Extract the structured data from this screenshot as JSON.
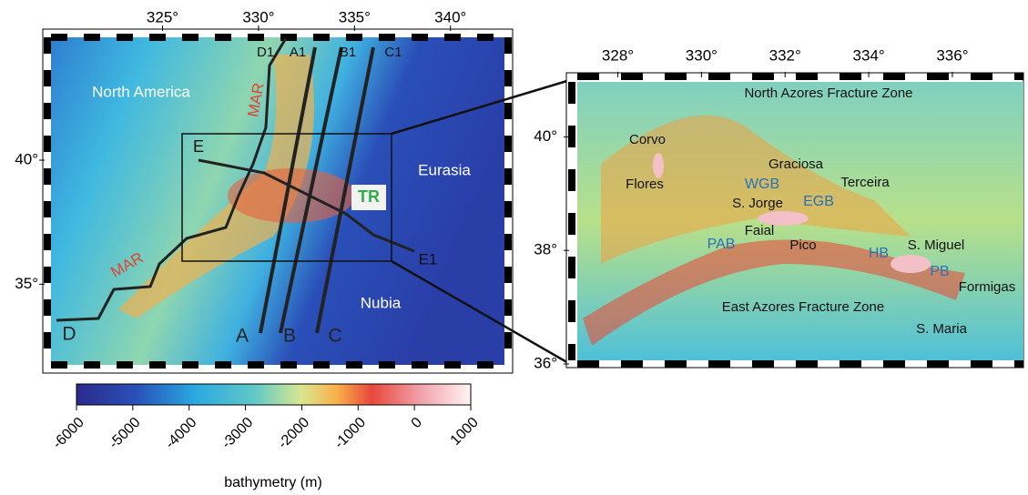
{
  "left_map": {
    "xlim": [
      319,
      343
    ],
    "ylim": [
      31.6,
      45.1
    ],
    "xticks": [
      {
        "value": 325,
        "label": "325°"
      },
      {
        "value": 330,
        "label": "330°"
      },
      {
        "value": 335,
        "label": "335°"
      },
      {
        "value": 340,
        "label": "340°"
      }
    ],
    "yticks": [
      {
        "value": 35,
        "label": "35°"
      },
      {
        "value": 40,
        "label": "40°"
      }
    ],
    "labels": [
      "D1",
      "A1",
      "B1",
      "C1",
      "North America",
      "MAR",
      "E",
      "Eurasia",
      "TR",
      "E1",
      "MAR",
      "Nubia",
      "D",
      "A",
      "B",
      "C"
    ]
  },
  "colorbar": {
    "xlim": [
      -6000,
      1000
    ],
    "xticks": [
      -6000,
      -5000,
      -4000,
      -3000,
      -2000,
      -1000,
      0,
      1000
    ],
    "label": "bathymetry (m)"
  },
  "right_map": {
    "xlim": [
      326.9,
      337.7
    ],
    "ylim": [
      36,
      41
    ],
    "xticks": [
      {
        "value": 328,
        "label": "328°"
      },
      {
        "value": 330,
        "label": "330°"
      },
      {
        "value": 332,
        "label": "332°"
      },
      {
        "value": 334,
        "label": "334°"
      },
      {
        "value": 336,
        "label": "336°"
      }
    ],
    "yticks": [
      {
        "value": 36,
        "label": "36°"
      },
      {
        "value": 38,
        "label": "38°"
      },
      {
        "value": 40,
        "label": "40°"
      }
    ],
    "labels": [
      "North Azores Fracture Zone",
      "Corvo",
      "Flores",
      "Graciosa",
      "Terceira",
      "WGB",
      "S. Jorge",
      "EGB",
      "Faial",
      "PAB",
      "Pico",
      "HB",
      "S. Miguel",
      "PB",
      "Formigas",
      "East Azores Fracture Zone",
      "S. Maria"
    ]
  }
}
